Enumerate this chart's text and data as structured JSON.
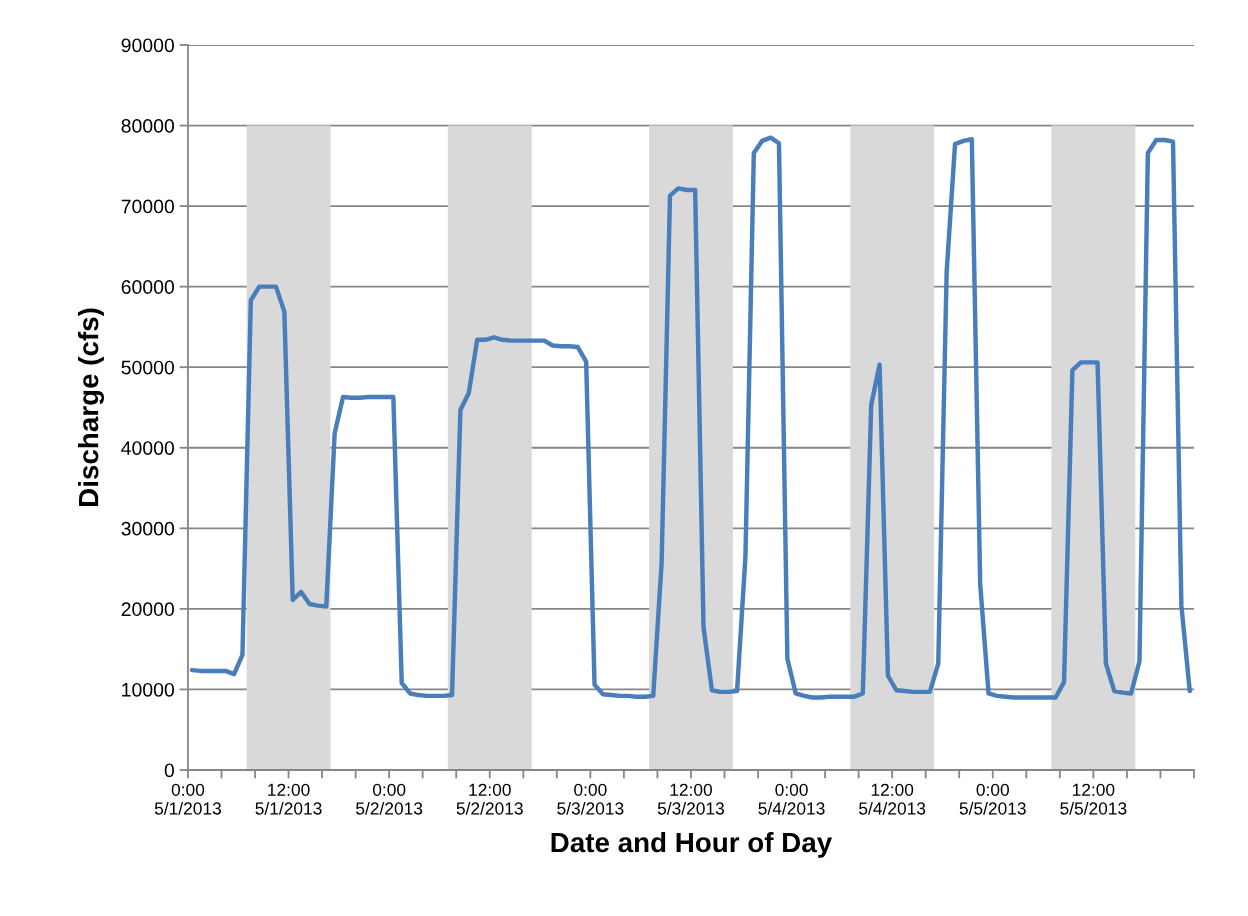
{
  "chart_data": {
    "type": "line",
    "xlabel": "Date and Hour of Day",
    "ylabel": "Discharge (cfs)",
    "xlim": [
      "2013-05-01T00:00",
      "2013-05-06T00:00"
    ],
    "ylim": [
      0,
      90000
    ],
    "xticks": [
      {
        "value": "2013-05-01T00:00",
        "label": "0:00\n5/1/2013"
      },
      {
        "value": "2013-05-01T04:00",
        "label": null
      },
      {
        "value": "2013-05-01T08:00",
        "label": null
      },
      {
        "value": "2013-05-01T12:00",
        "label": "12:00\n5/1/2013"
      },
      {
        "value": "2013-05-01T16:00",
        "label": null
      },
      {
        "value": "2013-05-01T20:00",
        "label": null
      },
      {
        "value": "2013-05-02T00:00",
        "label": "0:00\n5/2/2013"
      },
      {
        "value": "2013-05-02T04:00",
        "label": null
      },
      {
        "value": "2013-05-02T08:00",
        "label": null
      },
      {
        "value": "2013-05-02T12:00",
        "label": "12:00\n5/2/2013"
      },
      {
        "value": "2013-05-02T16:00",
        "label": null
      },
      {
        "value": "2013-05-02T20:00",
        "label": null
      },
      {
        "value": "2013-05-03T00:00",
        "label": "0:00\n5/3/2013"
      },
      {
        "value": "2013-05-03T04:00",
        "label": null
      },
      {
        "value": "2013-05-03T08:00",
        "label": null
      },
      {
        "value": "2013-05-03T12:00",
        "label": "12:00\n5/3/2013"
      },
      {
        "value": "2013-05-03T16:00",
        "label": null
      },
      {
        "value": "2013-05-03T20:00",
        "label": null
      },
      {
        "value": "2013-05-04T00:00",
        "label": "0:00\n5/4/2013"
      },
      {
        "value": "2013-05-04T04:00",
        "label": null
      },
      {
        "value": "2013-05-04T08:00",
        "label": null
      },
      {
        "value": "2013-05-04T12:00",
        "label": "12:00\n5/4/2013"
      },
      {
        "value": "2013-05-04T16:00",
        "label": null
      },
      {
        "value": "2013-05-04T20:00",
        "label": null
      },
      {
        "value": "2013-05-05T00:00",
        "label": "0:00\n5/5/2013"
      },
      {
        "value": "2013-05-05T04:00",
        "label": null
      },
      {
        "value": "2013-05-05T08:00",
        "label": null
      },
      {
        "value": "2013-05-05T12:00",
        "label": "12:00\n5/5/2013"
      },
      {
        "value": "2013-05-05T16:00",
        "label": null
      },
      {
        "value": "2013-05-05T20:00",
        "label": null
      },
      {
        "value": "2013-05-06T00:00",
        "label": null
      }
    ],
    "yticks": [
      0,
      10000,
      20000,
      30000,
      40000,
      50000,
      60000,
      70000,
      80000,
      90000
    ],
    "grid": "y",
    "series": [
      {
        "type": "area",
        "color": "#d9d9d9",
        "x": [
          "2013-05-01T07:00",
          "2013-05-01T07:00",
          "2013-05-01T17:00",
          "2013-05-01T17:00",
          "2013-05-02T07:00",
          "2013-05-02T07:00",
          "2013-05-02T17:00",
          "2013-05-02T17:00",
          "2013-05-03T07:00",
          "2013-05-03T07:00",
          "2013-05-03T17:00",
          "2013-05-03T17:00",
          "2013-05-04T07:00",
          "2013-05-04T07:00",
          "2013-05-04T17:00",
          "2013-05-04T17:00",
          "2013-05-05T07:00",
          "2013-05-05T07:00",
          "2013-05-05T17:00",
          "2013-05-05T17:00"
        ],
        "values": [
          0,
          80000,
          80000,
          0,
          0,
          80000,
          80000,
          0,
          0,
          80000,
          80000,
          0,
          0,
          80000,
          80000,
          0,
          0,
          80000,
          80000,
          0
        ]
      },
      {
        "color": "#4a7ebb",
        "x": [
          "2013-05-01T00:30",
          "2013-05-01T01:30",
          "2013-05-01T02:30",
          "2013-05-01T03:30",
          "2013-05-01T04:30",
          "2013-05-01T05:30",
          "2013-05-01T06:30",
          "2013-05-01T07:30",
          "2013-05-01T08:30",
          "2013-05-01T09:30",
          "2013-05-01T10:30",
          "2013-05-01T11:30",
          "2013-05-01T12:30",
          "2013-05-01T13:30",
          "2013-05-01T14:30",
          "2013-05-01T15:30",
          "2013-05-01T16:30",
          "2013-05-01T17:30",
          "2013-05-01T18:30",
          "2013-05-01T19:30",
          "2013-05-01T20:30",
          "2013-05-01T21:30",
          "2013-05-01T22:30",
          "2013-05-01T23:30",
          "2013-05-02T00:30",
          "2013-05-02T01:30",
          "2013-05-02T02:30",
          "2013-05-02T03:30",
          "2013-05-02T04:30",
          "2013-05-02T05:30",
          "2013-05-02T06:30",
          "2013-05-02T07:30",
          "2013-05-02T08:30",
          "2013-05-02T09:30",
          "2013-05-02T10:30",
          "2013-05-02T11:30",
          "2013-05-02T12:30",
          "2013-05-02T13:30",
          "2013-05-02T14:30",
          "2013-05-02T15:30",
          "2013-05-02T16:30",
          "2013-05-02T17:30",
          "2013-05-02T18:30",
          "2013-05-02T19:30",
          "2013-05-02T20:30",
          "2013-05-02T21:30",
          "2013-05-02T22:30",
          "2013-05-02T23:30",
          "2013-05-03T00:30",
          "2013-05-03T01:30",
          "2013-05-03T02:30",
          "2013-05-03T03:30",
          "2013-05-03T04:30",
          "2013-05-03T05:30",
          "2013-05-03T06:30",
          "2013-05-03T07:30",
          "2013-05-03T08:30",
          "2013-05-03T09:30",
          "2013-05-03T10:30",
          "2013-05-03T11:30",
          "2013-05-03T12:30",
          "2013-05-03T13:30",
          "2013-05-03T14:30",
          "2013-05-03T15:30",
          "2013-05-03T16:30",
          "2013-05-03T17:30",
          "2013-05-03T18:30",
          "2013-05-03T19:30",
          "2013-05-03T20:30",
          "2013-05-03T21:30",
          "2013-05-03T22:30",
          "2013-05-03T23:30",
          "2013-05-04T00:30",
          "2013-05-04T01:30",
          "2013-05-04T02:30",
          "2013-05-04T03:30",
          "2013-05-04T04:30",
          "2013-05-04T05:30",
          "2013-05-04T06:30",
          "2013-05-04T07:30",
          "2013-05-04T08:30",
          "2013-05-04T09:30",
          "2013-05-04T10:30",
          "2013-05-04T11:30",
          "2013-05-04T12:30",
          "2013-05-04T13:30",
          "2013-05-04T14:30",
          "2013-05-04T15:30",
          "2013-05-04T16:30",
          "2013-05-04T17:30",
          "2013-05-04T18:30",
          "2013-05-04T19:30",
          "2013-05-04T20:30",
          "2013-05-04T21:30",
          "2013-05-04T22:30",
          "2013-05-04T23:30",
          "2013-05-05T00:30",
          "2013-05-05T01:30",
          "2013-05-05T02:30",
          "2013-05-05T03:30",
          "2013-05-05T04:30",
          "2013-05-05T05:30",
          "2013-05-05T06:30",
          "2013-05-05T07:30",
          "2013-05-05T08:30",
          "2013-05-05T09:30",
          "2013-05-05T10:30",
          "2013-05-05T11:30",
          "2013-05-05T12:30",
          "2013-05-05T13:30",
          "2013-05-05T14:30",
          "2013-05-05T15:30",
          "2013-05-05T16:30",
          "2013-05-05T17:30",
          "2013-05-05T18:30",
          "2013-05-05T19:30",
          "2013-05-05T20:30",
          "2013-05-05T21:30",
          "2013-05-05T22:30",
          "2013-05-05T23:30"
        ],
        "values": [
          12400,
          12300,
          12300,
          12300,
          12300,
          11900,
          14300,
          58300,
          60000,
          60000,
          60000,
          56900,
          21100,
          22100,
          20600,
          20400,
          20300,
          41800,
          46300,
          46200,
          46200,
          46300,
          46300,
          46300,
          46300,
          10800,
          9500,
          9300,
          9200,
          9200,
          9200,
          9300,
          44700,
          46800,
          53400,
          53400,
          53700,
          53400,
          53300,
          53300,
          53300,
          53300,
          53300,
          52700,
          52600,
          52600,
          52500,
          50700,
          10600,
          9400,
          9300,
          9200,
          9200,
          9100,
          9100,
          9200,
          25700,
          71300,
          72200,
          72000,
          72000,
          17700,
          9900,
          9700,
          9700,
          9800,
          26500,
          76600,
          78100,
          78500,
          77800,
          13800,
          9500,
          9200,
          9000,
          9000,
          9100,
          9100,
          9100,
          9100,
          9500,
          45300,
          50300,
          11700,
          9900,
          9800,
          9700,
          9700,
          9700,
          13200,
          61800,
          77700,
          78100,
          78300,
          23100,
          9500,
          9200,
          9100,
          9000,
          9000,
          9000,
          9000,
          9000,
          9000,
          10900,
          49600,
          50600,
          50600,
          50600,
          13200,
          9800,
          9600,
          9500,
          13500,
          76600,
          78200,
          78200,
          78000,
          20400,
          9800
        ]
      }
    ]
  }
}
